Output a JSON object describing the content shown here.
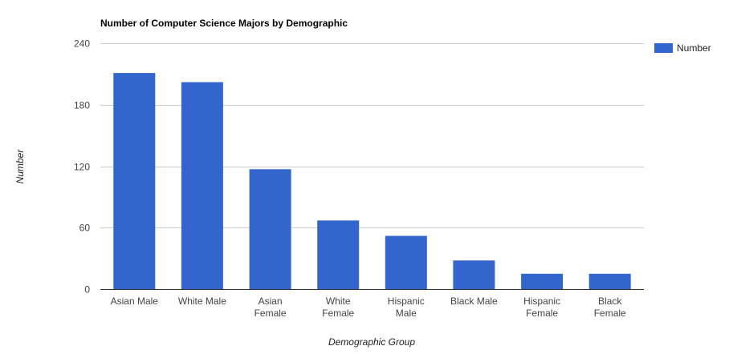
{
  "chart_data": {
    "type": "bar",
    "title": "Number of Computer Science Majors by Demographic",
    "xlabel": "Demographic Group",
    "ylabel": "Number",
    "categories": [
      "Asian Male",
      "White Male",
      "Asian Female",
      "White Female",
      "Hispanic Male",
      "Black Male",
      "Hispanic Female",
      "Black Female"
    ],
    "series": [
      {
        "name": "Number",
        "values": [
          211,
          202,
          117,
          67,
          52,
          28,
          15,
          15
        ],
        "color": "#3366cc"
      }
    ],
    "ylim": [
      0,
      240
    ],
    "yticks": [
      0,
      60,
      120,
      180,
      240
    ],
    "grid": true,
    "legend": "right"
  }
}
